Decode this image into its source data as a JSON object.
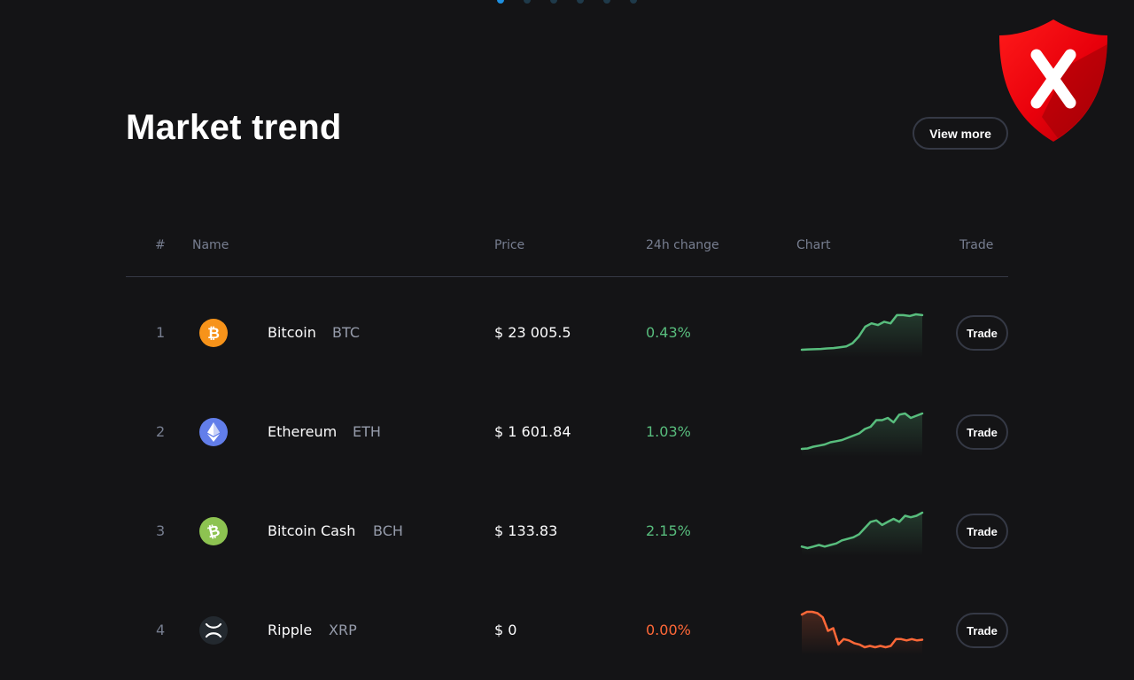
{
  "carousel": {
    "count": 6,
    "active_index": 0
  },
  "header": {
    "title": "Market trend",
    "view_more_label": "View more"
  },
  "table": {
    "columns": [
      "#",
      "Name",
      "Price",
      "24h change",
      "Chart",
      "Trade"
    ],
    "rows": [
      {
        "rank": "1",
        "name": "Bitcoin",
        "symbol": "BTC",
        "price": "$ 23 005.5",
        "change": "0.43%",
        "trend": "up",
        "icon": "bitcoin-icon",
        "icon_color": "#f7931a",
        "trade_label": "Trade",
        "spark": [
          10,
          10.2,
          10.3,
          10.5,
          10.8,
          11,
          11.5,
          12,
          14,
          18,
          24,
          26,
          25,
          27,
          26,
          31,
          31,
          30.5,
          31.5,
          31
        ]
      },
      {
        "rank": "2",
        "name": "Ethereum",
        "symbol": "ETH",
        "price": "$ 1 601.84",
        "change": "1.03%",
        "trend": "up",
        "icon": "ethereum-icon",
        "icon_color": "#627eea",
        "trade_label": "Trade",
        "spark": [
          10,
          10.2,
          11,
          11.5,
          12,
          13,
          13.5,
          14,
          15,
          16,
          17,
          19,
          20,
          23,
          23,
          24,
          22,
          25.5,
          26,
          24,
          25,
          26
        ]
      },
      {
        "rank": "3",
        "name": "Bitcoin Cash",
        "symbol": "BCH",
        "price": "$ 133.83",
        "change": "2.15%",
        "trend": "up",
        "icon": "bitcoin-cash-icon",
        "icon_color": "#8dc351",
        "trade_label": "Trade",
        "spark": [
          20,
          19.5,
          20,
          20.5,
          20,
          20.5,
          21,
          22,
          22.5,
          23,
          24,
          26,
          28,
          28.5,
          27,
          28,
          29,
          28,
          30,
          29.5,
          30,
          31
        ]
      },
      {
        "rank": "4",
        "name": "Ripple",
        "symbol": "XRP",
        "price": "$ 0",
        "change": "0.00%",
        "trend": "down",
        "icon": "ripple-icon",
        "icon_color": "#23292f",
        "trade_label": "Trade",
        "spark": [
          36,
          38,
          38,
          37,
          34,
          24,
          26,
          14,
          18,
          17,
          15,
          14,
          12,
          13,
          12,
          13,
          12,
          13,
          18,
          18,
          17,
          18,
          17,
          17.5
        ]
      }
    ]
  },
  "colors": {
    "background": "#141416",
    "positive": "#58bd7d",
    "negative": "#ff6838",
    "border": "#353945",
    "muted": "#777e90",
    "shield_red": "#e8000b"
  },
  "overlay": {
    "icon": "shield-x-icon"
  }
}
